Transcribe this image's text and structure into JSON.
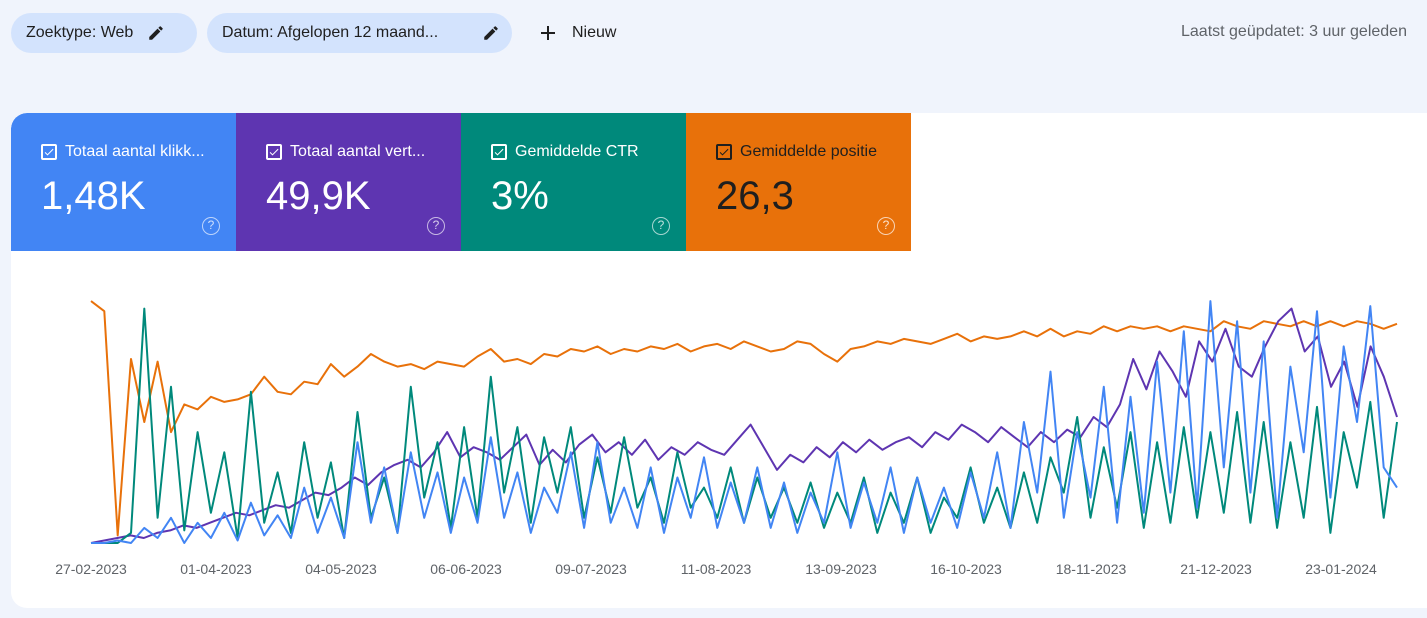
{
  "filters": {
    "search_type": "Zoektype: Web",
    "date_range": "Datum: Afgelopen 12 maand...",
    "new_label": "Nieuw"
  },
  "last_updated": "Laatst geüpdatet: 3 uur geleden",
  "metrics": [
    {
      "label": "Totaal aantal klikk...",
      "value": "1,48K",
      "color": "#4285f4",
      "checked": true
    },
    {
      "label": "Totaal aantal vert...",
      "value": "49,9K",
      "color": "#5e35b1",
      "checked": true
    },
    {
      "label": "Gemiddelde CTR",
      "value": "3%",
      "color": "#00897b",
      "checked": true
    },
    {
      "label": "Gemiddelde positie",
      "value": "26,3",
      "color": "#e8710a",
      "checked": true
    }
  ],
  "chart_data": {
    "type": "line",
    "x_tick_labels": [
      "27-02-2023",
      "01-04-2023",
      "04-05-2023",
      "06-06-2023",
      "09-07-2023",
      "11-08-2023",
      "13-09-2023",
      "16-10-2023",
      "18-11-2023",
      "21-12-2023",
      "23-01-2024"
    ],
    "series": [
      {
        "name": "Gemiddelde positie",
        "color": "#e8710a",
        "values": [
          0.96,
          0.92,
          0.03,
          0.73,
          0.48,
          0.72,
          0.44,
          0.55,
          0.53,
          0.58,
          0.56,
          0.57,
          0.59,
          0.66,
          0.6,
          0.59,
          0.64,
          0.63,
          0.71,
          0.66,
          0.7,
          0.75,
          0.72,
          0.7,
          0.71,
          0.69,
          0.72,
          0.71,
          0.7,
          0.74,
          0.77,
          0.72,
          0.73,
          0.71,
          0.75,
          0.74,
          0.77,
          0.76,
          0.78,
          0.75,
          0.77,
          0.76,
          0.78,
          0.77,
          0.79,
          0.76,
          0.78,
          0.79,
          0.77,
          0.8,
          0.78,
          0.76,
          0.77,
          0.8,
          0.79,
          0.75,
          0.72,
          0.77,
          0.78,
          0.8,
          0.79,
          0.81,
          0.8,
          0.79,
          0.81,
          0.83,
          0.8,
          0.82,
          0.81,
          0.82,
          0.84,
          0.82,
          0.85,
          0.82,
          0.84,
          0.83,
          0.86,
          0.84,
          0.86,
          0.85,
          0.86,
          0.84,
          0.86,
          0.85,
          0.84,
          0.88,
          0.86,
          0.85,
          0.88,
          0.87,
          0.86,
          0.88,
          0.86,
          0.88,
          0.86,
          0.88,
          0.87,
          0.85,
          0.87
        ]
      },
      {
        "name": "Totaal aantal vertoningen",
        "color": "#5e35b1",
        "values": [
          0.0,
          0.01,
          0.02,
          0.03,
          0.02,
          0.04,
          0.05,
          0.07,
          0.06,
          0.08,
          0.1,
          0.12,
          0.11,
          0.13,
          0.15,
          0.14,
          0.17,
          0.2,
          0.19,
          0.22,
          0.26,
          0.23,
          0.28,
          0.31,
          0.33,
          0.3,
          0.36,
          0.44,
          0.34,
          0.38,
          0.36,
          0.33,
          0.38,
          0.43,
          0.31,
          0.37,
          0.32,
          0.39,
          0.43,
          0.36,
          0.4,
          0.35,
          0.41,
          0.33,
          0.38,
          0.35,
          0.4,
          0.37,
          0.35,
          0.41,
          0.47,
          0.38,
          0.29,
          0.35,
          0.32,
          0.38,
          0.34,
          0.4,
          0.36,
          0.41,
          0.37,
          0.4,
          0.42,
          0.38,
          0.44,
          0.41,
          0.47,
          0.44,
          0.4,
          0.46,
          0.42,
          0.38,
          0.44,
          0.4,
          0.45,
          0.42,
          0.5,
          0.46,
          0.55,
          0.73,
          0.61,
          0.76,
          0.68,
          0.58,
          0.8,
          0.72,
          0.85,
          0.7,
          0.66,
          0.78,
          0.88,
          0.93,
          0.76,
          0.82,
          0.62,
          0.72,
          0.54,
          0.78,
          0.66,
          0.5
        ]
      },
      {
        "name": "Gemiddelde CTR",
        "color": "#00897b",
        "values": [
          0.0,
          0.0,
          0.0,
          0.04,
          0.93,
          0.1,
          0.62,
          0.05,
          0.44,
          0.12,
          0.36,
          0.02,
          0.6,
          0.08,
          0.28,
          0.04,
          0.4,
          0.1,
          0.32,
          0.02,
          0.52,
          0.1,
          0.26,
          0.04,
          0.62,
          0.18,
          0.4,
          0.06,
          0.46,
          0.1,
          0.66,
          0.2,
          0.46,
          0.08,
          0.42,
          0.2,
          0.46,
          0.1,
          0.34,
          0.12,
          0.42,
          0.14,
          0.26,
          0.08,
          0.36,
          0.14,
          0.22,
          0.1,
          0.3,
          0.08,
          0.26,
          0.1,
          0.22,
          0.08,
          0.24,
          0.06,
          0.2,
          0.08,
          0.26,
          0.04,
          0.2,
          0.08,
          0.26,
          0.04,
          0.18,
          0.1,
          0.3,
          0.08,
          0.22,
          0.06,
          0.28,
          0.08,
          0.34,
          0.2,
          0.5,
          0.1,
          0.38,
          0.14,
          0.44,
          0.06,
          0.4,
          0.08,
          0.46,
          0.1,
          0.44,
          0.12,
          0.52,
          0.08,
          0.48,
          0.06,
          0.4,
          0.1,
          0.54,
          0.04,
          0.44,
          0.22,
          0.56,
          0.1,
          0.48
        ]
      },
      {
        "name": "Totaal aantal klikken",
        "color": "#4285f4",
        "values": [
          0.0,
          0.0,
          0.01,
          0.0,
          0.06,
          0.02,
          0.1,
          0.0,
          0.08,
          0.02,
          0.12,
          0.01,
          0.16,
          0.03,
          0.11,
          0.02,
          0.22,
          0.04,
          0.18,
          0.02,
          0.4,
          0.08,
          0.3,
          0.04,
          0.36,
          0.1,
          0.28,
          0.04,
          0.26,
          0.08,
          0.42,
          0.1,
          0.28,
          0.04,
          0.22,
          0.12,
          0.36,
          0.06,
          0.4,
          0.08,
          0.22,
          0.06,
          0.3,
          0.04,
          0.26,
          0.1,
          0.34,
          0.06,
          0.24,
          0.08,
          0.3,
          0.06,
          0.24,
          0.04,
          0.2,
          0.08,
          0.36,
          0.06,
          0.24,
          0.08,
          0.3,
          0.04,
          0.26,
          0.08,
          0.22,
          0.06,
          0.28,
          0.1,
          0.36,
          0.06,
          0.48,
          0.2,
          0.68,
          0.1,
          0.44,
          0.18,
          0.62,
          0.08,
          0.58,
          0.12,
          0.72,
          0.2,
          0.84,
          0.14,
          0.96,
          0.3,
          0.88,
          0.2,
          0.8,
          0.1,
          0.7,
          0.36,
          0.92,
          0.18,
          0.78,
          0.48,
          0.94,
          0.3,
          0.22
        ]
      }
    ]
  }
}
